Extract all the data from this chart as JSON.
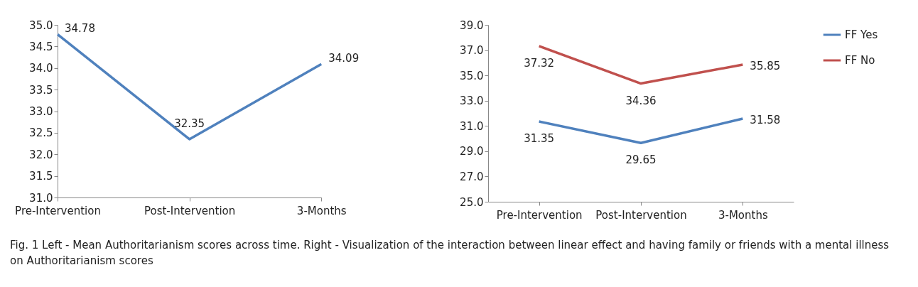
{
  "chart_data": [
    {
      "type": "line",
      "categories": [
        "Pre-Intervention",
        "Post-Intervention",
        "3-Months"
      ],
      "series": [
        {
          "color": "#4f81bd",
          "values": [
            34.78,
            32.35,
            34.09
          ]
        }
      ],
      "ylim": [
        31,
        35
      ],
      "yticks": [
        {
          "value": 31,
          "label": "31.0"
        },
        {
          "value": 31.5,
          "label": "31.5"
        },
        {
          "value": 32,
          "label": "32.0"
        },
        {
          "value": 32.5,
          "label": "32.5"
        },
        {
          "value": 33,
          "label": "33.0"
        },
        {
          "value": 33.5,
          "label": "33.5"
        },
        {
          "value": 34,
          "label": "34.0"
        },
        {
          "value": 34.5,
          "label": "34.5"
        },
        {
          "value": 35,
          "label": "35.0"
        }
      ],
      "data_labels": true,
      "grid": false,
      "annotations": [
        "Fig. 1 Left - Mean Authoritarianism scores across time. Right - Visualization of the interaction between linear effect and having family or friends with a mental illness on Authoritarianism scores"
      ]
    },
    {
      "type": "line",
      "categories": [
        "Pre-Intervention",
        "Post-Intervention",
        "3-Months"
      ],
      "series": [
        {
          "name": "FF Yes",
          "color": "#4f81bd",
          "values": [
            31.35,
            29.65,
            31.58
          ]
        },
        {
          "name": "FF No",
          "color": "#c0504d",
          "values": [
            37.32,
            34.36,
            35.85
          ]
        }
      ],
      "ylim": [
        25,
        39
      ],
      "yticks": [
        {
          "value": 25,
          "label": "25.0"
        },
        {
          "value": 27,
          "label": "27.0"
        },
        {
          "value": 29,
          "label": "29.0"
        },
        {
          "value": 31,
          "label": "31.0"
        },
        {
          "value": 33,
          "label": "33.0"
        },
        {
          "value": 35,
          "label": "35.0"
        },
        {
          "value": 37,
          "label": "37.0"
        },
        {
          "value": 39,
          "label": "39.0"
        }
      ],
      "data_labels": true,
      "grid": false,
      "legend": "right"
    }
  ]
}
